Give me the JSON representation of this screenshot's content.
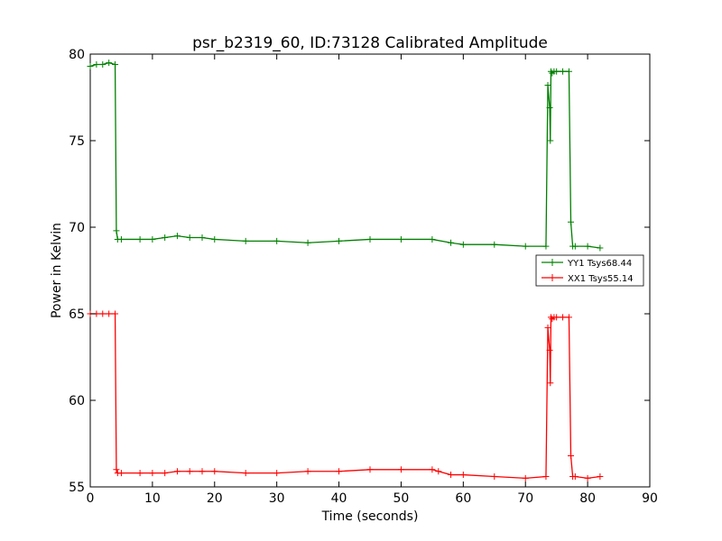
{
  "chart_data": {
    "type": "line",
    "title": "psr_b2319_60, ID:73128 Calibrated Amplitude",
    "xlabel": "Time (seconds)",
    "ylabel": "Power in Kelvin",
    "xlim": [
      0,
      90
    ],
    "ylim": [
      55,
      80
    ],
    "xticks": [
      0,
      10,
      20,
      30,
      40,
      50,
      60,
      70,
      80,
      90
    ],
    "yticks": [
      55,
      60,
      65,
      70,
      75,
      80
    ],
    "grid": false,
    "legend_position": "right",
    "series": [
      {
        "name": "YY1 Tsys68.44",
        "color": "#008000",
        "marker": "+",
        "x": [
          0,
          1,
          2,
          3,
          4,
          4.2,
          4.4,
          5,
          8,
          10,
          12,
          14,
          16,
          18,
          20,
          25,
          30,
          35,
          40,
          45,
          50,
          55,
          58,
          60,
          65,
          70,
          73.3,
          73.6,
          73.9,
          74.0,
          74.1,
          74.3,
          74.6,
          75,
          76,
          77,
          77.3,
          77.6,
          78,
          80,
          82
        ],
        "y": [
          79.3,
          79.4,
          79.4,
          79.5,
          79.4,
          69.8,
          69.3,
          69.3,
          69.3,
          69.3,
          69.4,
          69.5,
          69.4,
          69.4,
          69.3,
          69.2,
          69.2,
          69.1,
          69.2,
          69.3,
          69.3,
          69.3,
          69.1,
          69.0,
          69.0,
          68.9,
          68.9,
          78.2,
          76.9,
          75.0,
          79.0,
          78.9,
          79.0,
          79.0,
          79.0,
          79.0,
          70.3,
          68.9,
          68.9,
          68.9,
          68.8
        ]
      },
      {
        "name": "XX1 Tsys55.14",
        "color": "#ff0000",
        "marker": "+",
        "x": [
          0,
          1,
          2,
          3,
          4,
          4.2,
          4.4,
          5,
          8,
          10,
          12,
          14,
          16,
          18,
          20,
          25,
          30,
          35,
          40,
          45,
          50,
          55,
          56,
          58,
          60,
          65,
          70,
          73.3,
          73.6,
          73.9,
          74.0,
          74.1,
          74.3,
          74.6,
          75,
          76,
          77,
          77.3,
          77.6,
          78,
          80,
          82
        ],
        "y": [
          65.0,
          65.0,
          65.0,
          65.0,
          65.0,
          56.0,
          55.8,
          55.8,
          55.8,
          55.8,
          55.8,
          55.9,
          55.9,
          55.9,
          55.9,
          55.8,
          55.8,
          55.9,
          55.9,
          56.0,
          56.0,
          56.0,
          55.9,
          55.7,
          55.7,
          55.6,
          55.5,
          55.6,
          64.2,
          62.9,
          61.0,
          64.8,
          64.7,
          64.8,
          64.8,
          64.8,
          64.8,
          56.8,
          55.6,
          55.6,
          55.5,
          55.6
        ]
      }
    ]
  }
}
